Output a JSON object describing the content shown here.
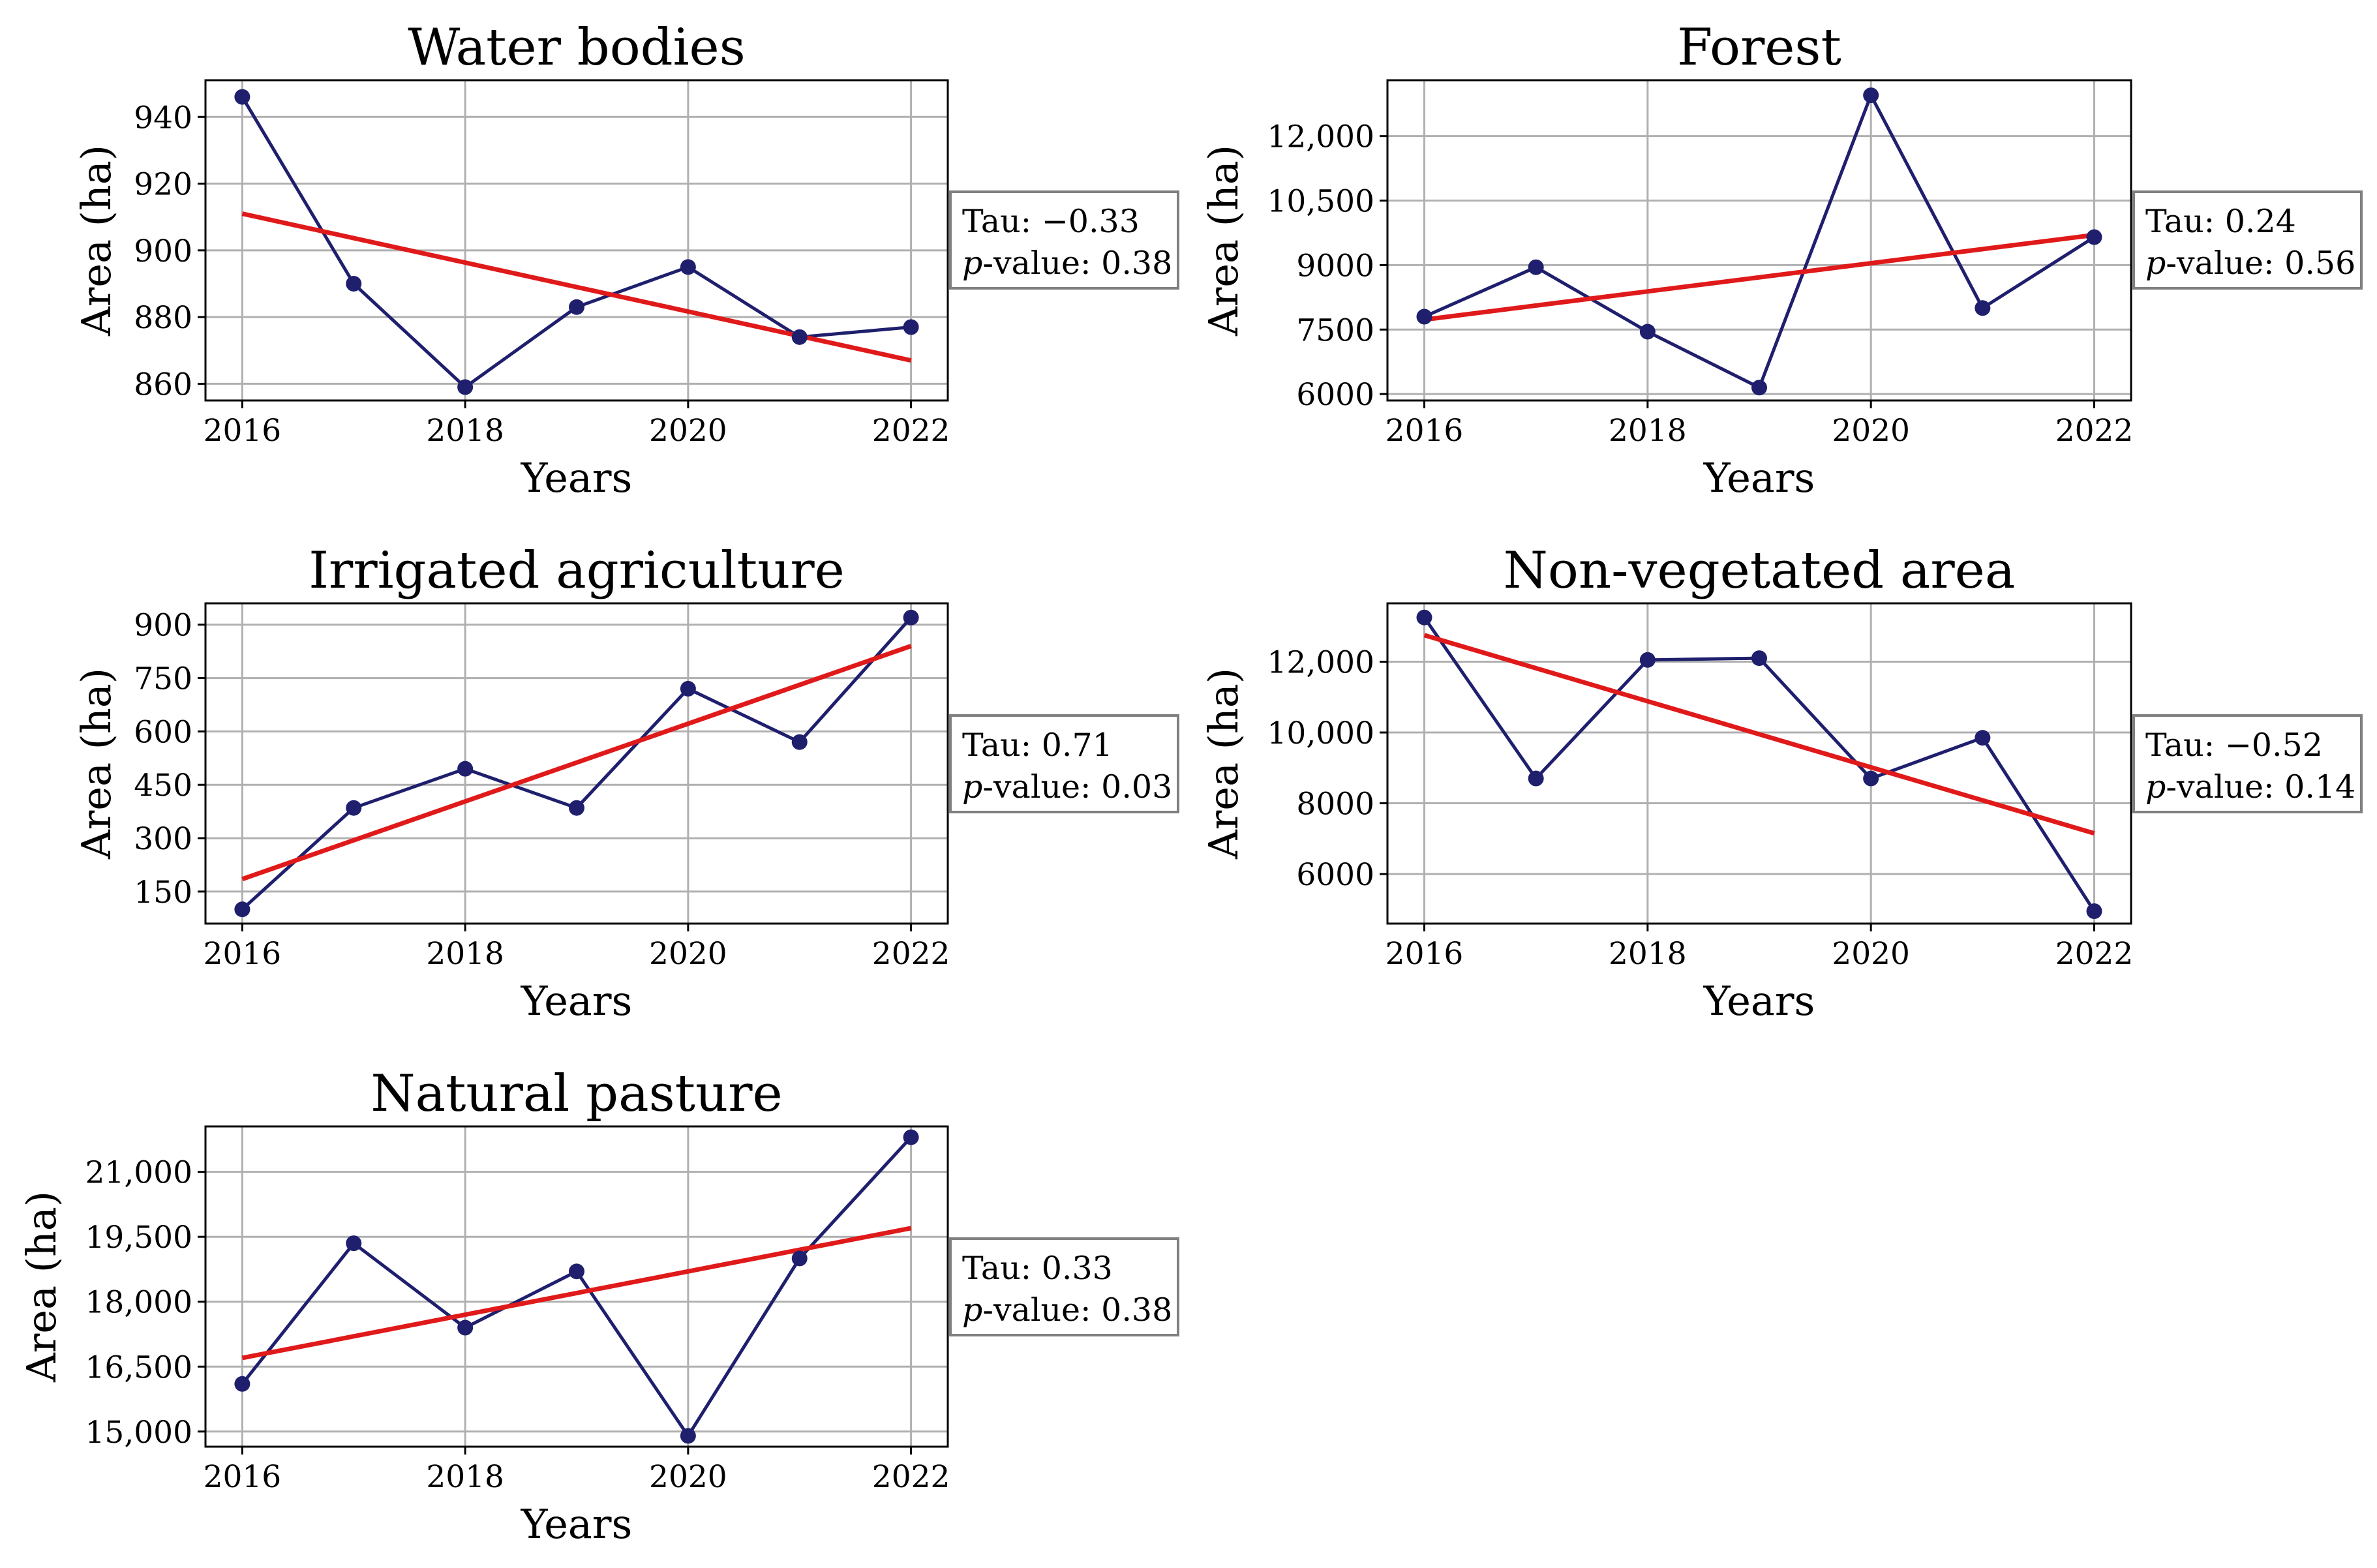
{
  "figure": {
    "background": "#ffffff"
  },
  "style": {
    "series_color": "#1f1f6e",
    "trend_color": "#e01a1a",
    "grid_color": "#b0b0b0",
    "box_border": "#808080"
  },
  "chart_data": [
    {
      "type": "line",
      "title": "Water bodies",
      "xlabel": "Years",
      "ylabel": "Area (ha)",
      "x": [
        2016,
        2017,
        2018,
        2019,
        2020,
        2021,
        2022
      ],
      "values": [
        946,
        890,
        859,
        883,
        895,
        874,
        877
      ],
      "trend": [
        911,
        867
      ],
      "ylim": [
        855,
        951
      ],
      "yticks": [
        860,
        880,
        900,
        920,
        940
      ],
      "ytick_labels": [
        "860",
        "880",
        "900",
        "920",
        "940"
      ],
      "xticks": [
        2016,
        2018,
        2020,
        2022
      ],
      "xtick_labels": [
        "2016",
        "2018",
        "2020",
        "2022"
      ],
      "grid": true,
      "stats": {
        "tau": "Tau: −0.33",
        "p_prefix": "p",
        "p_rest": "-value: 0.38"
      }
    },
    {
      "type": "line",
      "title": "Forest",
      "xlabel": "Years",
      "ylabel": "Area (ha)",
      "x": [
        2016,
        2017,
        2018,
        2019,
        2020,
        2021,
        2022
      ],
      "values": [
        7800,
        8950,
        7450,
        6150,
        12950,
        8000,
        9650
      ],
      "trend": [
        7730,
        9700
      ],
      "ylim": [
        5850,
        13300
      ],
      "yticks": [
        6000,
        7500,
        9000,
        10500,
        12000
      ],
      "ytick_labels": [
        "6000",
        "7500",
        "9000",
        "10,500",
        "12,000"
      ],
      "xticks": [
        2016,
        2018,
        2020,
        2022
      ],
      "xtick_labels": [
        "2016",
        "2018",
        "2020",
        "2022"
      ],
      "grid": true,
      "stats": {
        "tau": "Tau: 0.24",
        "p_prefix": "p",
        "p_rest": "-value: 0.56"
      }
    },
    {
      "type": "line",
      "title": "Irrigated agriculture",
      "xlabel": "Years",
      "ylabel": "Area (ha)",
      "x": [
        2016,
        2017,
        2018,
        2019,
        2020,
        2021,
        2022
      ],
      "values": [
        100,
        385,
        495,
        385,
        720,
        570,
        920
      ],
      "trend": [
        185,
        840
      ],
      "ylim": [
        60,
        960
      ],
      "yticks": [
        150,
        300,
        450,
        600,
        750,
        900
      ],
      "ytick_labels": [
        "150",
        "300",
        "450",
        "600",
        "750",
        "900"
      ],
      "xticks": [
        2016,
        2018,
        2020,
        2022
      ],
      "xtick_labels": [
        "2016",
        "2018",
        "2020",
        "2022"
      ],
      "grid": true,
      "stats": {
        "tau": "Tau: 0.71",
        "p_prefix": "p",
        "p_rest": "-value: 0.03"
      }
    },
    {
      "type": "line",
      "title": "Non-vegetated area",
      "xlabel": "Years",
      "ylabel": "Area (ha)",
      "x": [
        2016,
        2017,
        2018,
        2019,
        2020,
        2021,
        2022
      ],
      "values": [
        13250,
        8700,
        12050,
        12100,
        8700,
        9850,
        4950
      ],
      "trend": [
        12750,
        7150
      ],
      "ylim": [
        4600,
        13650
      ],
      "yticks": [
        6000,
        8000,
        10000,
        12000
      ],
      "ytick_labels": [
        "6000",
        "8000",
        "10,000",
        "12,000"
      ],
      "xticks": [
        2016,
        2018,
        2020,
        2022
      ],
      "xtick_labels": [
        "2016",
        "2018",
        "2020",
        "2022"
      ],
      "grid": true,
      "stats": {
        "tau": "Tau: −0.52",
        "p_prefix": "p",
        "p_rest": "-value: 0.14"
      }
    },
    {
      "type": "line",
      "title": "Natural pasture",
      "xlabel": "Years",
      "ylabel": "Area (ha)",
      "x": [
        2016,
        2017,
        2018,
        2019,
        2020,
        2021,
        2022
      ],
      "values": [
        16100,
        19350,
        17400,
        18700,
        14900,
        19000,
        21800
      ],
      "trend": [
        16700,
        19700
      ],
      "ylim": [
        14650,
        22050
      ],
      "yticks": [
        15000,
        16500,
        18000,
        19500,
        21000
      ],
      "ytick_labels": [
        "15,000",
        "16,500",
        "18,000",
        "19,500",
        "21,000"
      ],
      "xticks": [
        2016,
        2018,
        2020,
        2022
      ],
      "xtick_labels": [
        "2016",
        "2018",
        "2020",
        "2022"
      ],
      "grid": true,
      "stats": {
        "tau": "Tau: 0.33",
        "p_prefix": "p",
        "p_rest": "-value: 0.38"
      }
    }
  ]
}
